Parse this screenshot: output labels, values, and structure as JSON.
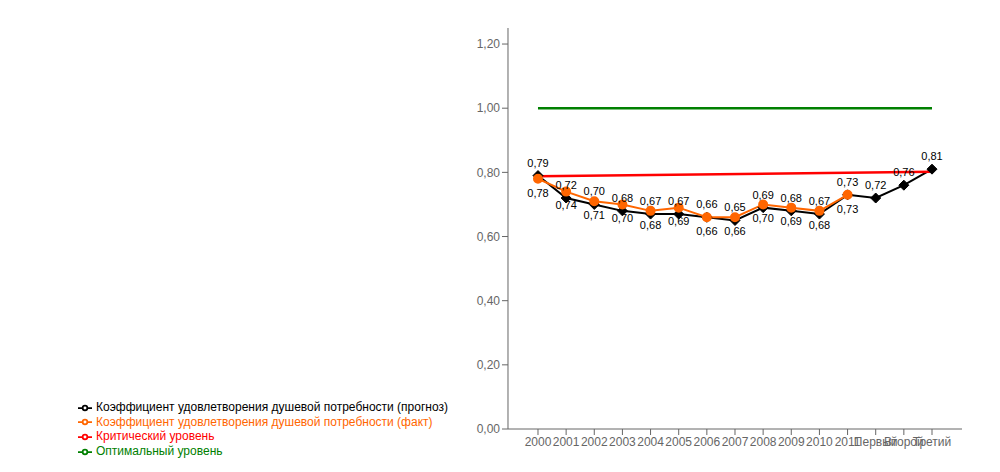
{
  "chart_data": {
    "type": "line",
    "categories": [
      "2000",
      "2001",
      "2002",
      "2003",
      "2004",
      "2005",
      "2006",
      "2007",
      "2008",
      "2009",
      "2010",
      "2011",
      "Первый",
      "Второй",
      "Третий"
    ],
    "series": [
      {
        "name": "Коэффициент удовлетворения душевой потребности (прогноз)",
        "color": "#000000",
        "marker": "diamond",
        "values": [
          0.79,
          0.72,
          0.7,
          0.68,
          0.67,
          0.67,
          0.66,
          0.65,
          0.69,
          0.68,
          0.67,
          0.73,
          0.72,
          0.76,
          0.81
        ],
        "value_labels": [
          "0,79",
          "0,72",
          "0,70",
          "0,68",
          "0,67",
          "0,67",
          "0,66",
          "0,65",
          "0,69",
          "0,68",
          "0,67",
          "0,73",
          "0,72",
          "0,76",
          "0,81"
        ]
      },
      {
        "name": "Коэффициент удовлетворения душевой потребности (факт)",
        "color": "#FF6600",
        "marker": "circle",
        "values": [
          0.78,
          0.74,
          0.71,
          0.7,
          0.68,
          0.69,
          0.66,
          0.66,
          0.7,
          0.69,
          0.68,
          0.73,
          null,
          null,
          null
        ],
        "value_labels": [
          "0,78",
          "0,74",
          "0,71",
          "0,70",
          "0,68",
          "0,69",
          "0,66",
          "0,66",
          "0,70",
          "0,69",
          "0,68",
          "0,73",
          null,
          null,
          null
        ]
      },
      {
        "name": "Оптимальный уровень",
        "color": "#008000",
        "marker": "none",
        "values": [
          1.0,
          1.0,
          1.0,
          1.0,
          1.0,
          1.0,
          1.0,
          1.0,
          1.0,
          1.0,
          1.0,
          1.0,
          1.0,
          1.0,
          1.0
        ]
      },
      {
        "name": "Критический уровень",
        "color": "#FF0000",
        "marker": "none",
        "values": [
          0.788,
          null,
          null,
          null,
          null,
          null,
          null,
          null,
          null,
          null,
          null,
          null,
          null,
          null,
          0.802
        ]
      }
    ],
    "ylim": [
      0.0,
      1.25
    ],
    "yticks": [
      {
        "value": 0.0,
        "label": "0,00"
      },
      {
        "value": 0.2,
        "label": "0,20"
      },
      {
        "value": 0.4,
        "label": "0,40"
      },
      {
        "value": 0.6,
        "label": "0,60"
      },
      {
        "value": 0.8,
        "label": "0,80"
      },
      {
        "value": 1.0,
        "label": "1,00"
      },
      {
        "value": 1.2,
        "label": "1,20"
      }
    ],
    "grid": false,
    "legend": "bottom",
    "data_labels": true
  }
}
